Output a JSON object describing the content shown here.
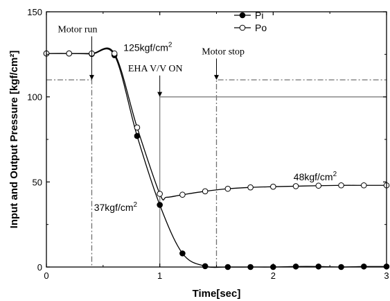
{
  "chart_data": {
    "type": "line",
    "xlabel": "Time[sec]",
    "ylabel": "Input and Output Pressure [kgf/cm²]",
    "xlim": [
      0,
      3
    ],
    "ylim": [
      0,
      150
    ],
    "x_ticks": [
      "0",
      "1",
      "2",
      "3"
    ],
    "y_ticks": [
      "0",
      "50",
      "100",
      "150"
    ],
    "grid": false,
    "legend": "top-center",
    "series": [
      {
        "name": "Pi",
        "marker": "filled-circle",
        "color": "#000000",
        "points": [
          [
            0,
            125.5
          ],
          [
            0.2,
            125.5
          ],
          [
            0.4,
            125.2
          ],
          [
            0.6,
            124.5
          ],
          [
            0.8,
            77
          ],
          [
            1.0,
            36.5
          ],
          [
            1.2,
            8
          ],
          [
            1.4,
            0.5
          ],
          [
            1.6,
            0
          ],
          [
            1.8,
            0
          ],
          [
            2.0,
            0
          ],
          [
            2.2,
            0.3
          ],
          [
            2.4,
            0.3
          ],
          [
            2.6,
            0
          ],
          [
            2.8,
            0.3
          ],
          [
            3.0,
            0.3
          ]
        ]
      },
      {
        "name": "Po",
        "marker": "open-circle",
        "color": "#000000",
        "points": [
          [
            0,
            125.5
          ],
          [
            0.2,
            125.5
          ],
          [
            0.4,
            125.5
          ],
          [
            0.6,
            125.5
          ],
          [
            0.8,
            82
          ],
          [
            1.0,
            43
          ],
          [
            1.06,
            41
          ],
          [
            1.2,
            42.5
          ],
          [
            1.4,
            44.5
          ],
          [
            1.6,
            46
          ],
          [
            1.8,
            46.8
          ],
          [
            2.0,
            47.2
          ],
          [
            2.2,
            47.5
          ],
          [
            2.4,
            47.8
          ],
          [
            2.6,
            48
          ],
          [
            2.8,
            48
          ],
          [
            3.0,
            48
          ]
        ]
      },
      {
        "name": "",
        "style": "dash-dot",
        "color": "#707070",
        "points": [
          [
            0,
            110
          ],
          [
            0.4,
            110
          ],
          [
            0.4,
            0
          ]
        ]
      },
      {
        "name": "",
        "style": "dash-dot",
        "color": "#707070",
        "points": [
          [
            1.5,
            0
          ],
          [
            1.5,
            110
          ],
          [
            3.0,
            110
          ]
        ]
      },
      {
        "name": "",
        "style": "solid",
        "color": "#808080",
        "points": [
          [
            1.0,
            0
          ],
          [
            1.0,
            100
          ],
          [
            3.0,
            100
          ]
        ]
      }
    ],
    "annotations": [
      {
        "text": "Motor run",
        "x": 0.1,
        "y": 138,
        "arrow_to": [
          0.4,
          110
        ]
      },
      {
        "text": "125kgf/cm",
        "sup": "2",
        "x": 0.68,
        "y": 127
      },
      {
        "text": "EHA V/V ON",
        "x": 0.72,
        "y": 115,
        "arrow_to": [
          1.0,
          100
        ]
      },
      {
        "text": "Motor stop",
        "x": 1.37,
        "y": 125,
        "arrow_to": [
          1.5,
          110
        ]
      },
      {
        "text": "48kgf/cm",
        "sup": "2",
        "x": 2.18,
        "y": 51
      },
      {
        "text": "37kgf/cm",
        "sup": "2",
        "x": 0.42,
        "y": 33
      }
    ]
  }
}
